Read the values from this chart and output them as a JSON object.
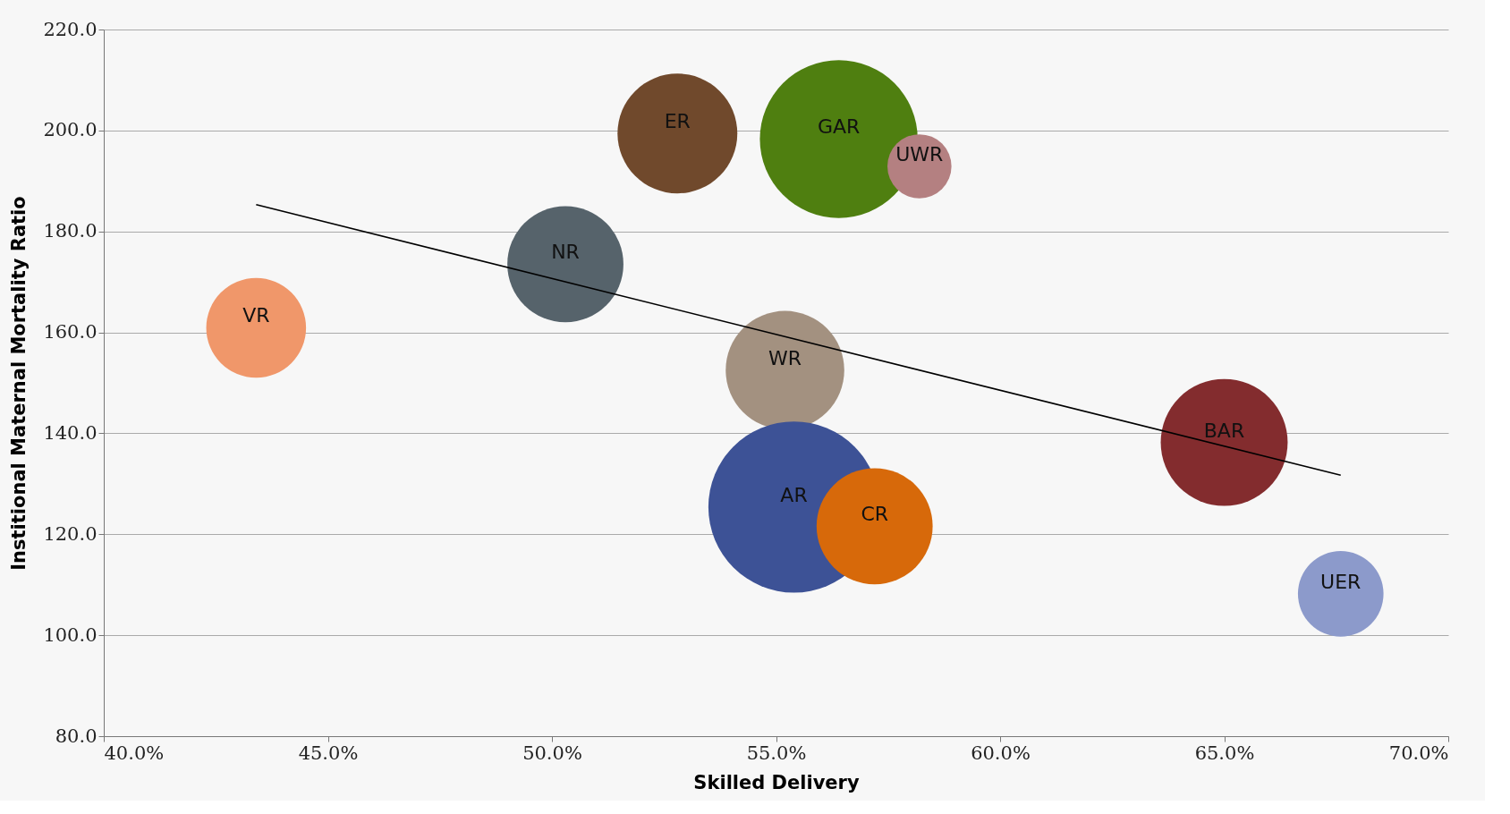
{
  "chart_data": {
    "type": "bubble",
    "xlabel": "Skilled Delivery",
    "ylabel": "Institional Maternal Mortality Ratio",
    "xlim": [
      40,
      70
    ],
    "xticks": [
      {
        "value": 40,
        "label": "40.0%"
      },
      {
        "value": 45,
        "label": "45.0%"
      },
      {
        "value": 50,
        "label": "50.0%"
      },
      {
        "value": 55,
        "label": "55.0%"
      },
      {
        "value": 60,
        "label": "60.0%"
      },
      {
        "value": 65,
        "label": "65.0%"
      },
      {
        "value": 70,
        "label": "70.0%"
      }
    ],
    "ylim": [
      80,
      220
    ],
    "yticks": [
      {
        "value": 80,
        "label": "80.0"
      },
      {
        "value": 100,
        "label": "100.0"
      },
      {
        "value": 120,
        "label": "120.0"
      },
      {
        "value": 140,
        "label": "140.0"
      },
      {
        "value": 160,
        "label": "160.0"
      },
      {
        "value": 180,
        "label": "180.0"
      },
      {
        "value": 200,
        "label": "200.0"
      },
      {
        "value": 220,
        "label": "220.0"
      }
    ],
    "grid": "y",
    "legend": false,
    "series": [
      {
        "name": "VR",
        "color": "#f0976a",
        "x": [
          43.4
        ],
        "values": [
          160.9
        ],
        "sizes": [
          0.34
        ]
      },
      {
        "name": "NR",
        "color": "#56636b",
        "x": [
          50.3
        ],
        "values": [
          173.5
        ],
        "sizes": [
          0.46
        ]
      },
      {
        "name": "ER",
        "color": "#70492c",
        "x": [
          52.8
        ],
        "values": [
          199.4
        ],
        "sizes": [
          0.49
        ]
      },
      {
        "name": "GAR",
        "color": "#4f7f10",
        "x": [
          56.4
        ],
        "values": [
          198.3
        ],
        "sizes": [
          0.85
        ]
      },
      {
        "name": "WR",
        "color": "#a39180",
        "x": [
          55.2
        ],
        "values": [
          152.5
        ],
        "sizes": [
          0.48
        ]
      },
      {
        "name": "AR",
        "color": "#3d5296",
        "x": [
          55.4
        ],
        "values": [
          125.4
        ],
        "sizes": [
          1.0
        ]
      },
      {
        "name": "CR",
        "color": "#d7690a",
        "x": [
          57.2
        ],
        "values": [
          121.6
        ],
        "sizes": [
          0.46
        ]
      },
      {
        "name": "UWR",
        "color": "#b48081",
        "x": [
          58.2
        ],
        "values": [
          192.9
        ],
        "sizes": [
          0.14
        ]
      },
      {
        "name": "BAR",
        "color": "#832c2e",
        "x": [
          65.0
        ],
        "values": [
          138.2
        ],
        "sizes": [
          0.55
        ]
      },
      {
        "name": "UER",
        "color": "#8c9acb",
        "x": [
          67.6
        ],
        "values": [
          108.2
        ],
        "sizes": [
          0.25
        ]
      },
      {
        "type": "line",
        "color": "#000000",
        "x": [
          43.4,
          67.6
        ],
        "values": [
          185.3,
          131.7
        ]
      }
    ]
  }
}
